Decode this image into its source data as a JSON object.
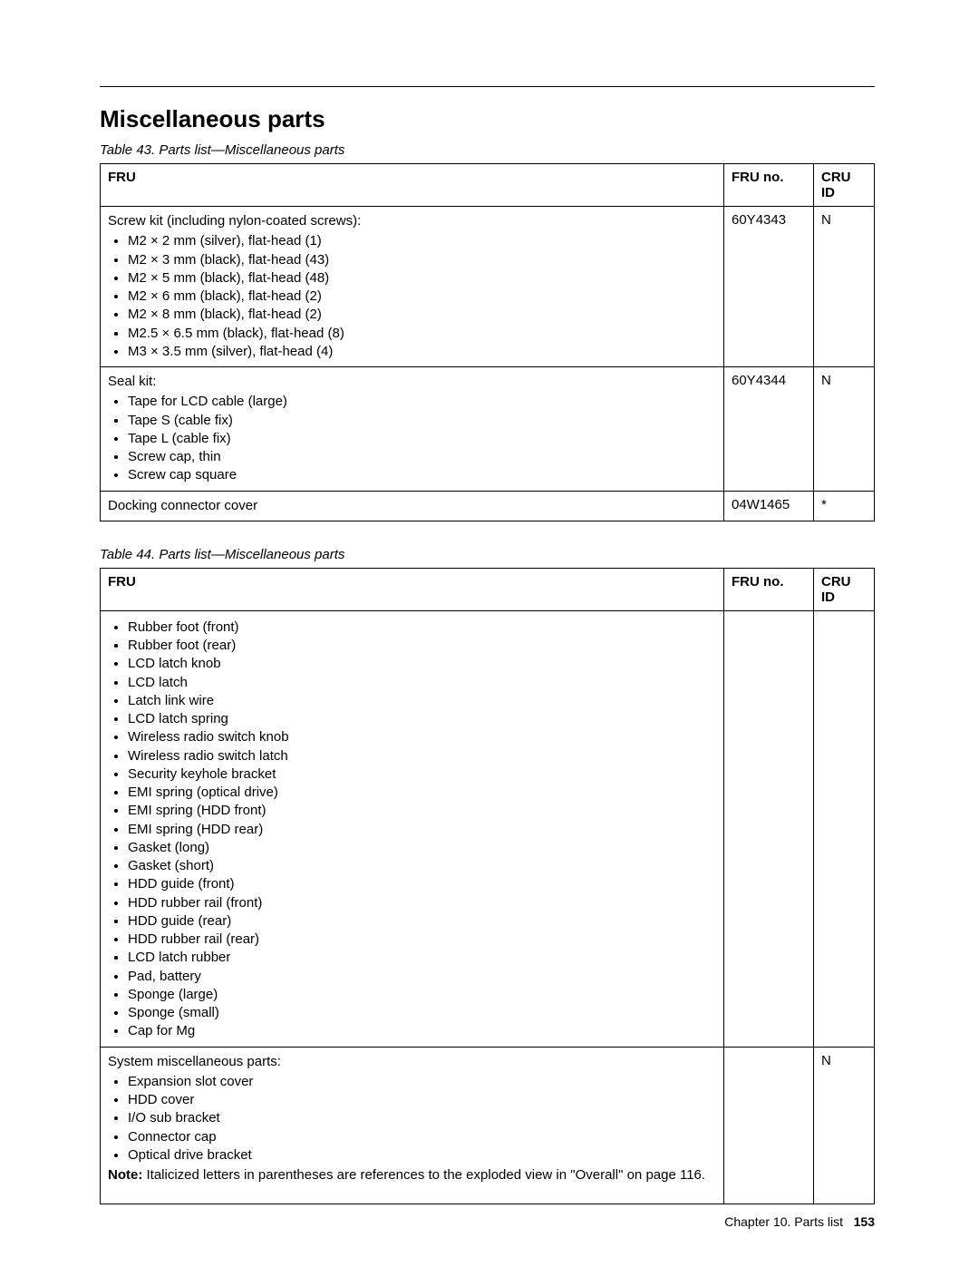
{
  "heading": "Miscellaneous parts",
  "table43": {
    "caption": "Table 43.  Parts list—Miscellaneous parts",
    "headers": {
      "fru": "FRU",
      "fruno": "FRU no.",
      "cruid": "CRU ID"
    },
    "rows": [
      {
        "lead": "Screw kit (including nylon-coated screws):",
        "items": [
          "M2 × 2 mm (silver), flat-head (1)",
          "M2 × 3 mm (black), flat-head (43)",
          "M2 × 5 mm (black), flat-head (48)",
          "M2 × 6 mm (black), flat-head (2)",
          "M2 × 8 mm (black), flat-head (2)",
          "M2.5 × 6.5 mm (black), flat-head (8)",
          "M3 × 3.5 mm (silver), flat-head (4)"
        ],
        "fruno": "60Y4343",
        "cruid": "N"
      },
      {
        "lead": "Seal kit:",
        "items": [
          "Tape for LCD cable (large)",
          "Tape S (cable fix)",
          "Tape L (cable fix)",
          "Screw cap, thin",
          "Screw cap square"
        ],
        "fruno": "60Y4344",
        "cruid": "N"
      },
      {
        "lead": "Docking connector cover",
        "items": [],
        "fruno": "04W1465",
        "cruid": "*"
      }
    ]
  },
  "table44": {
    "caption": "Table 44.  Parts list—Miscellaneous parts",
    "headers": {
      "fru": "FRU",
      "fruno": "FRU no.",
      "cruid": "CRU ID"
    },
    "rows": [
      {
        "lead": "",
        "items": [
          "Rubber foot (front)",
          "Rubber foot (rear)",
          "LCD latch knob",
          "LCD latch",
          "Latch link wire",
          "LCD latch spring",
          "Wireless radio switch knob",
          "Wireless radio switch latch",
          "Security keyhole bracket",
          "EMI spring (optical drive)",
          "EMI spring (HDD front)",
          "EMI spring (HDD rear)",
          "Gasket (long)",
          "Gasket (short)",
          "HDD guide (front)",
          "HDD rubber rail (front)",
          "HDD guide (rear)",
          "HDD rubber rail (rear)",
          "LCD latch rubber",
          "Pad, battery",
          "Sponge (large)",
          "Sponge (small)",
          "Cap for Mg"
        ],
        "fruno": "",
        "cruid": ""
      },
      {
        "lead": "System miscellaneous parts:",
        "items": [
          "Expansion slot cover",
          "HDD cover",
          "I/O sub bracket",
          "Connector cap",
          "Optical drive bracket"
        ],
        "note_label": "Note:",
        "note_text": " Italicized letters in parentheses are references to the exploded view in \"Overall\" on page 116.",
        "fruno": "",
        "cruid": "N"
      }
    ]
  },
  "footer": {
    "chapter": "Chapter 10.  Parts list",
    "page": "153"
  }
}
